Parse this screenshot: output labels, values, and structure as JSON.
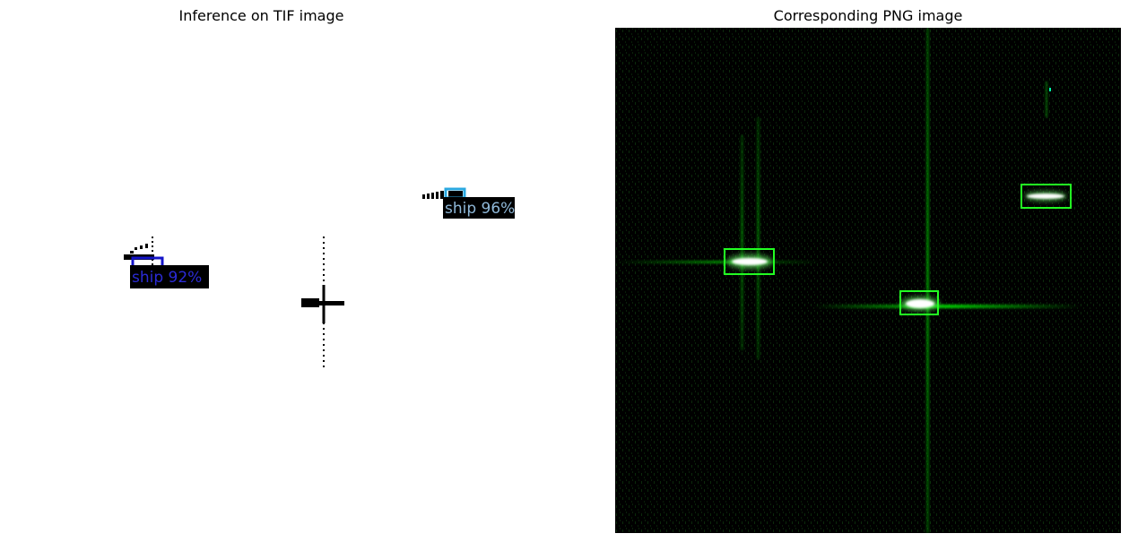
{
  "figure": {
    "left_title": "Inference on TIF image",
    "right_title": "Corresponding PNG image"
  },
  "detections": [
    {
      "label": "ship 92%",
      "color": "#2b2bd6",
      "box_color": "#1414c8"
    },
    {
      "label": "ship 96%",
      "color": "#8fb8d8",
      "box_color": "#2aa8e0"
    }
  ],
  "colors": {
    "png_box": "#22ff22",
    "label_bg": "#000000"
  }
}
